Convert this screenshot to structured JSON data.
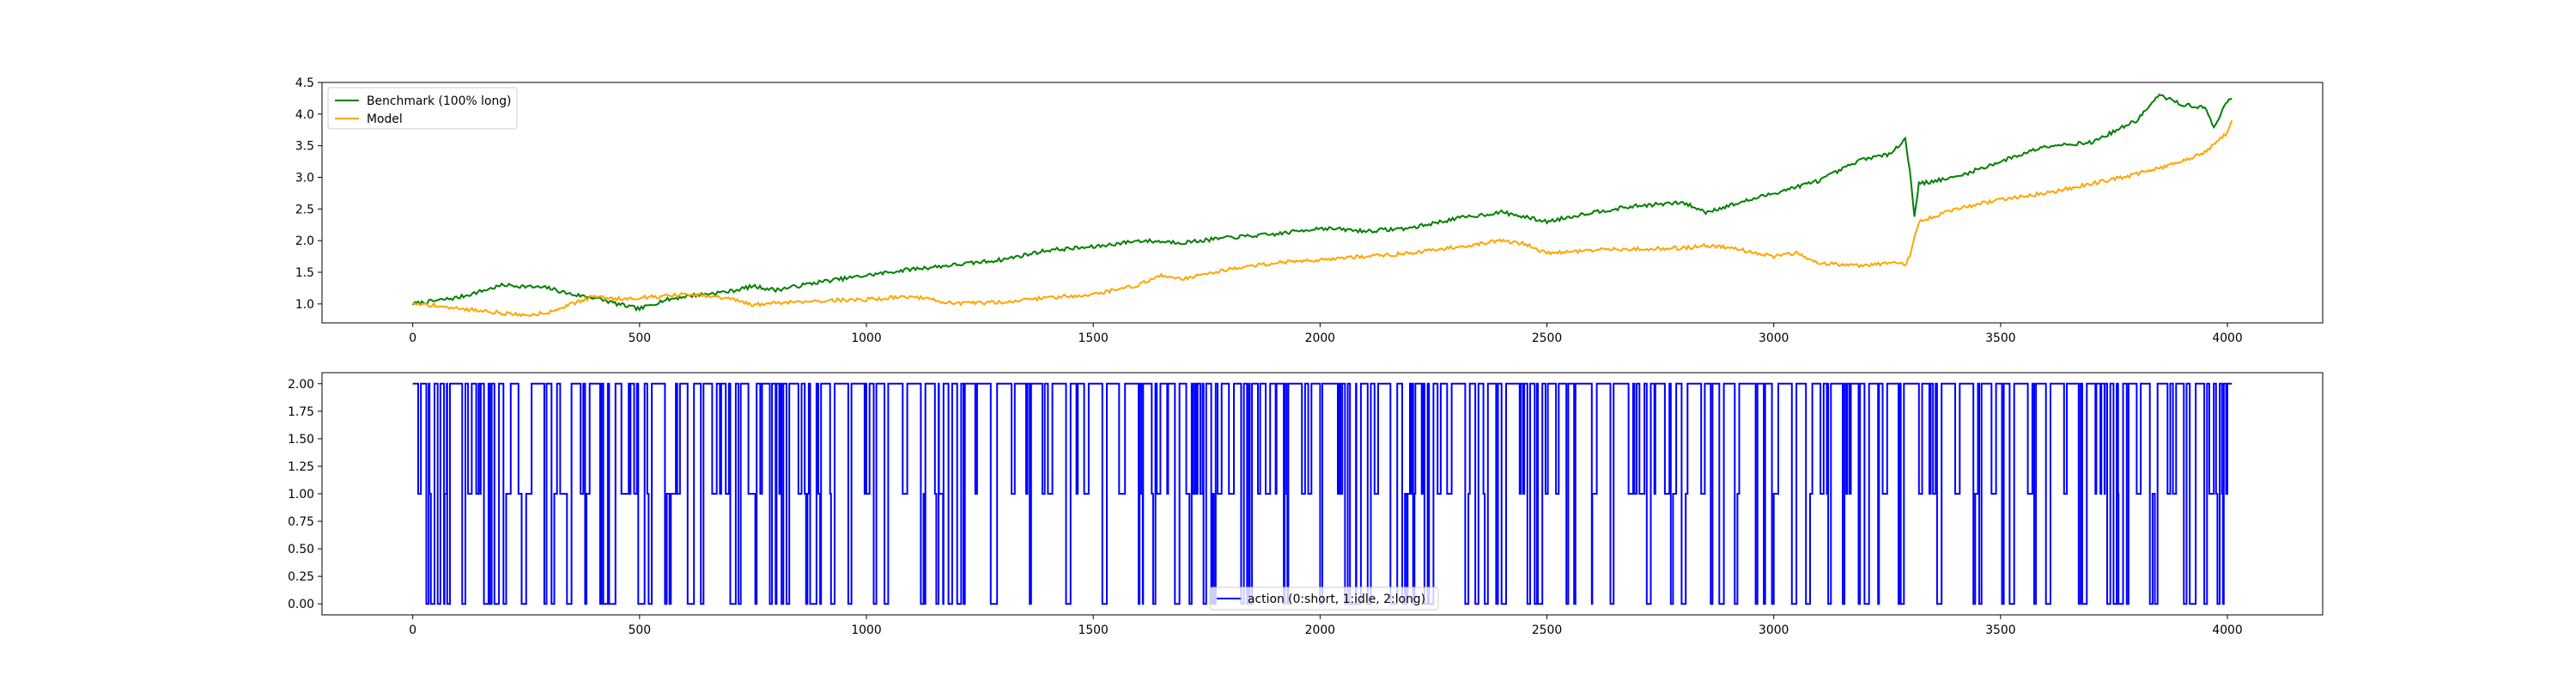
{
  "chart_data": [
    {
      "type": "line",
      "title": "",
      "xlabel": "",
      "ylabel": "",
      "xlim": [
        -200,
        4210
      ],
      "ylim": [
        0.7,
        4.5
      ],
      "xticks": [
        0,
        500,
        1000,
        1500,
        2000,
        2500,
        3000,
        3500,
        4000
      ],
      "xtick_labels": [
        "0",
        "500",
        "1000",
        "1500",
        "2000",
        "2500",
        "3000",
        "3500",
        "4000"
      ],
      "yticks": [
        1.0,
        1.5,
        2.0,
        2.5,
        3.0,
        3.5,
        4.0,
        4.5
      ],
      "ytick_labels": [
        "1.0",
        "1.5",
        "2.0",
        "2.5",
        "3.0",
        "3.5",
        "4.0",
        "4.5"
      ],
      "grid": false,
      "legend_position": "top-left",
      "series": [
        {
          "name": "Benchmark (100% long)",
          "color": "#008000",
          "x": [
            0,
            100,
            200,
            300,
            350,
            400,
            450,
            500,
            550,
            600,
            700,
            750,
            800,
            900,
            1000,
            1100,
            1200,
            1300,
            1400,
            1500,
            1600,
            1700,
            1800,
            1900,
            2000,
            2100,
            2200,
            2300,
            2400,
            2500,
            2600,
            2700,
            2800,
            2850,
            2900,
            3000,
            3050,
            3100,
            3200,
            3250,
            3290,
            3300,
            3310,
            3320,
            3400,
            3500,
            3600,
            3700,
            3800,
            3850,
            3900,
            3950,
            3970,
            4000,
            4010
          ],
          "y": [
            1.0,
            1.1,
            1.3,
            1.25,
            1.15,
            1.1,
            1.0,
            0.92,
            1.05,
            1.12,
            1.2,
            1.28,
            1.22,
            1.35,
            1.45,
            1.55,
            1.62,
            1.7,
            1.85,
            1.9,
            2.0,
            1.97,
            2.05,
            2.1,
            2.2,
            2.15,
            2.2,
            2.35,
            2.45,
            2.3,
            2.45,
            2.55,
            2.6,
            2.45,
            2.55,
            2.75,
            2.85,
            2.95,
            3.3,
            3.35,
            3.6,
            3.1,
            2.4,
            2.9,
            3.0,
            3.25,
            3.5,
            3.55,
            3.9,
            4.3,
            4.15,
            4.1,
            3.8,
            4.2,
            4.25
          ]
        },
        {
          "name": "Model",
          "color": "#ffa500",
          "x": [
            0,
            50,
            100,
            150,
            200,
            250,
            300,
            350,
            400,
            450,
            500,
            550,
            600,
            650,
            700,
            750,
            800,
            900,
            1000,
            1100,
            1200,
            1300,
            1400,
            1500,
            1600,
            1650,
            1700,
            1800,
            1900,
            2000,
            2100,
            2200,
            2300,
            2350,
            2400,
            2450,
            2500,
            2600,
            2700,
            2800,
            2850,
            2900,
            3000,
            3050,
            3100,
            3200,
            3250,
            3290,
            3300,
            3320,
            3400,
            3500,
            3600,
            3700,
            3800,
            3850,
            3900,
            3950,
            4000,
            4010
          ],
          "y": [
            1.0,
            0.98,
            0.92,
            0.9,
            0.85,
            0.82,
            0.87,
            1.0,
            1.12,
            1.08,
            1.1,
            1.12,
            1.15,
            1.12,
            1.08,
            0.98,
            1.02,
            1.05,
            1.07,
            1.12,
            1.0,
            1.03,
            1.1,
            1.15,
            1.3,
            1.45,
            1.4,
            1.55,
            1.65,
            1.7,
            1.75,
            1.8,
            1.9,
            1.95,
            2.0,
            1.95,
            1.8,
            1.85,
            1.87,
            1.88,
            1.92,
            1.9,
            1.75,
            1.8,
            1.65,
            1.6,
            1.65,
            1.62,
            1.75,
            2.3,
            2.5,
            2.65,
            2.75,
            2.9,
            3.05,
            3.15,
            3.25,
            3.4,
            3.7,
            3.9
          ]
        }
      ]
    },
    {
      "type": "line",
      "title": "",
      "xlabel": "",
      "ylabel": "",
      "xlim": [
        -200,
        4210
      ],
      "ylim": [
        -0.1,
        2.1
      ],
      "xticks": [
        0,
        500,
        1000,
        1500,
        2000,
        2500,
        3000,
        3500,
        4000
      ],
      "xtick_labels": [
        "0",
        "500",
        "1000",
        "1500",
        "2000",
        "2500",
        "3000",
        "3500",
        "4000"
      ],
      "yticks": [
        0.0,
        0.25,
        0.5,
        0.75,
        1.0,
        1.25,
        1.5,
        1.75,
        2.0
      ],
      "ytick_labels": [
        "0.00",
        "0.25",
        "0.50",
        "0.75",
        "1.00",
        "1.25",
        "1.50",
        "1.75",
        "2.00"
      ],
      "grid": false,
      "legend_position": "bottom-center",
      "series": [
        {
          "name": "action (0:short, 1:idle, 2:long)",
          "color": "#0000ff",
          "x_start": 0,
          "x_end": 4010,
          "values_description_levels": [
            0,
            1,
            2
          ],
          "segments": [
            [
              0,
              2
            ],
            [
              12,
              1
            ],
            [
              18,
              2
            ],
            [
              40,
              0
            ],
            [
              48,
              2
            ],
            [
              70,
              1
            ],
            [
              76,
              0
            ],
            [
              82,
              2
            ],
            [
              110,
              0
            ],
            [
              116,
              2
            ],
            [
              140,
              1
            ],
            [
              150,
              2
            ],
            [
              170,
              0
            ],
            [
              178,
              2
            ],
            [
              200,
              0
            ],
            [
              206,
              1
            ],
            [
              216,
              2
            ],
            [
              240,
              0
            ],
            [
              250,
              1
            ],
            [
              262,
              2
            ],
            [
              290,
              0
            ],
            [
              298,
              2
            ],
            [
              330,
              1
            ],
            [
              340,
              0
            ],
            [
              350,
              2
            ],
            [
              380,
              0
            ],
            [
              390,
              2
            ],
            [
              420,
              0
            ],
            [
              430,
              2
            ],
            [
              460,
              1
            ],
            [
              480,
              2
            ],
            [
              520,
              0
            ],
            [
              528,
              2
            ],
            [
              560,
              1
            ],
            [
              580,
              2
            ],
            [
              610,
              0
            ],
            [
              620,
              2
            ],
            [
              660,
              1
            ],
            [
              670,
              2
            ],
            [
              700,
              0
            ],
            [
              712,
              2
            ],
            [
              740,
              1
            ],
            [
              760,
              2
            ],
            [
              800,
              0
            ],
            [
              810,
              2
            ],
            [
              850,
              1
            ],
            [
              860,
              2
            ],
            [
              880,
              0
            ],
            [
              890,
              2
            ],
            [
              920,
              1
            ],
            [
              930,
              2
            ],
            [
              960,
              0
            ],
            [
              970,
              2
            ],
            [
              1000,
              1
            ],
            [
              1010,
              2
            ],
            [
              1040,
              0
            ],
            [
              1050,
              2
            ],
            [
              1080,
              1
            ],
            [
              1090,
              2
            ],
            [
              1120,
              0
            ],
            [
              1130,
              2
            ],
            [
              1160,
              1
            ],
            [
              1170,
              2
            ],
            [
              1200,
              0
            ],
            [
              1210,
              2
            ],
            [
              1240,
              1
            ],
            [
              1250,
              2
            ],
            [
              1280,
              0
            ],
            [
              1290,
              2
            ],
            [
              1320,
              1
            ],
            [
              1330,
              2
            ],
            [
              1360,
              0
            ],
            [
              1370,
              2
            ],
            [
              1400,
              1
            ],
            [
              1410,
              2
            ],
            [
              1440,
              0
            ],
            [
              1450,
              2
            ],
            [
              1480,
              1
            ],
            [
              1490,
              2
            ],
            [
              1520,
              0
            ],
            [
              1530,
              2
            ],
            [
              1560,
              1
            ],
            [
              1570,
              2
            ],
            [
              1600,
              0
            ],
            [
              1610,
              2
            ],
            [
              1640,
              1
            ],
            [
              1650,
              2
            ],
            [
              1680,
              0
            ],
            [
              1690,
              2
            ],
            [
              1720,
              1
            ],
            [
              1730,
              2
            ],
            [
              1760,
              0
            ],
            [
              1770,
              2
            ],
            [
              1800,
              1
            ],
            [
              1810,
              2
            ],
            [
              1840,
              0
            ],
            [
              1850,
              2
            ],
            [
              1880,
              1
            ],
            [
              1890,
              2
            ],
            [
              1920,
              0
            ],
            [
              1930,
              2
            ],
            [
              1960,
              1
            ],
            [
              1970,
              2
            ],
            [
              2000,
              0
            ],
            [
              2010,
              2
            ],
            [
              2040,
              1
            ],
            [
              2050,
              2
            ],
            [
              2080,
              0
            ],
            [
              2090,
              2
            ],
            [
              2120,
              1
            ],
            [
              2130,
              2
            ],
            [
              2160,
              0
            ],
            [
              2170,
              2
            ],
            [
              2200,
              1
            ],
            [
              2210,
              2
            ],
            [
              2240,
              0
            ],
            [
              2250,
              2
            ],
            [
              2280,
              1
            ],
            [
              2290,
              2
            ],
            [
              2320,
              0
            ],
            [
              2330,
              2
            ],
            [
              2360,
              1
            ],
            [
              2370,
              2
            ],
            [
              2400,
              0
            ],
            [
              2410,
              2
            ],
            [
              2440,
              1
            ],
            [
              2450,
              2
            ],
            [
              2480,
              0
            ],
            [
              2490,
              2
            ],
            [
              2520,
              1
            ],
            [
              2530,
              2
            ],
            [
              2560,
              0
            ],
            [
              2570,
              2
            ],
            [
              2600,
              1
            ],
            [
              2610,
              2
            ],
            [
              2640,
              0
            ],
            [
              2650,
              2
            ],
            [
              2680,
              1
            ],
            [
              2690,
              2
            ],
            [
              2720,
              0
            ],
            [
              2730,
              2
            ],
            [
              2760,
              1
            ],
            [
              2770,
              2
            ],
            [
              2800,
              0
            ],
            [
              2810,
              2
            ],
            [
              2840,
              1
            ],
            [
              2850,
              2
            ],
            [
              2880,
              0
            ],
            [
              2890,
              2
            ],
            [
              2920,
              1
            ],
            [
              2930,
              2
            ],
            [
              2960,
              0
            ],
            [
              2970,
              2
            ],
            [
              3000,
              1
            ],
            [
              3010,
              2
            ],
            [
              3040,
              0
            ],
            [
              3050,
              2
            ],
            [
              3080,
              1
            ],
            [
              3090,
              2
            ],
            [
              3120,
              0
            ],
            [
              3130,
              2
            ],
            [
              3160,
              1
            ],
            [
              3170,
              2
            ],
            [
              3200,
              0
            ],
            [
              3210,
              2
            ],
            [
              3240,
              1
            ],
            [
              3250,
              2
            ],
            [
              3280,
              0
            ],
            [
              3290,
              2
            ],
            [
              3320,
              1
            ],
            [
              3330,
              2
            ],
            [
              3360,
              0
            ],
            [
              3370,
              2
            ],
            [
              3400,
              1
            ],
            [
              3410,
              2
            ],
            [
              3440,
              0
            ],
            [
              3450,
              2
            ],
            [
              3480,
              1
            ],
            [
              3490,
              2
            ],
            [
              3520,
              0
            ],
            [
              3530,
              2
            ],
            [
              3560,
              1
            ],
            [
              3570,
              2
            ],
            [
              3600,
              0
            ],
            [
              3610,
              2
            ],
            [
              3640,
              1
            ],
            [
              3650,
              2
            ],
            [
              3680,
              0
            ],
            [
              3690,
              2
            ],
            [
              3720,
              1
            ],
            [
              3730,
              2
            ],
            [
              3760,
              0
            ],
            [
              3770,
              2
            ],
            [
              3800,
              1
            ],
            [
              3810,
              2
            ],
            [
              3840,
              0
            ],
            [
              3850,
              2
            ],
            [
              3880,
              1
            ],
            [
              3890,
              2
            ],
            [
              3920,
              0
            ],
            [
              3930,
              2
            ],
            [
              3960,
              1
            ],
            [
              3970,
              2
            ],
            [
              3990,
              0
            ],
            [
              4000,
              2
            ]
          ]
        }
      ]
    }
  ]
}
